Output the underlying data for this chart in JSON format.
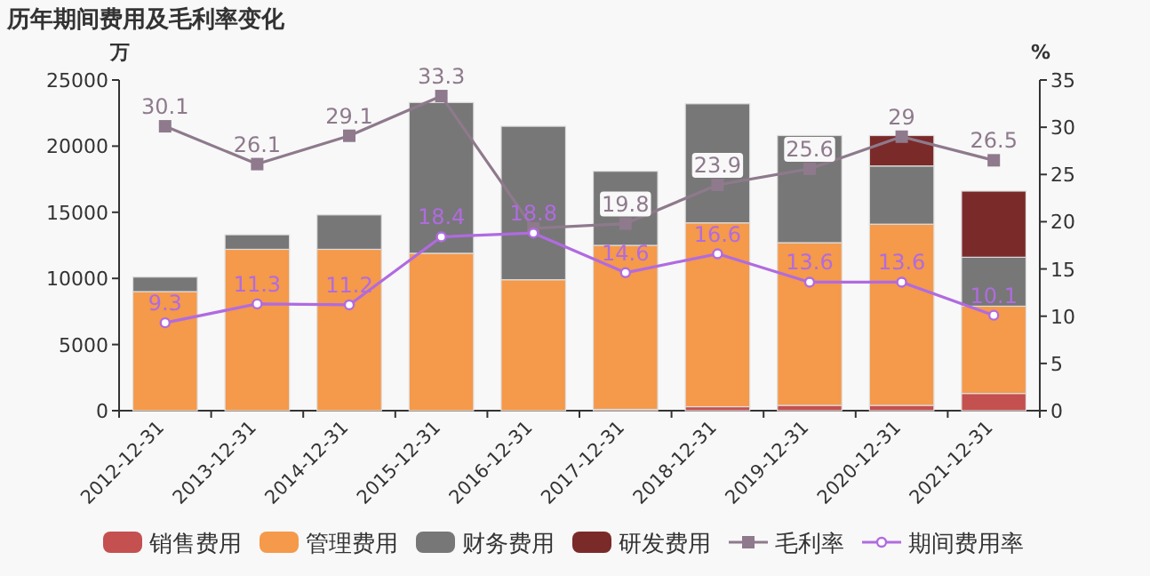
{
  "chart_data": {
    "type": "bar",
    "title": "历年期间费用及毛利率变化",
    "ylabel": "万",
    "y2label": "%",
    "categories": [
      "2012-12-31",
      "2013-12-31",
      "2014-12-31",
      "2015-12-31",
      "2016-12-31",
      "2017-12-31",
      "2018-12-31",
      "2019-12-31",
      "2020-12-31",
      "2021-12-31"
    ],
    "stacked": true,
    "ylim": [
      0,
      25000
    ],
    "yticks": [
      0,
      5000,
      10000,
      15000,
      20000,
      25000
    ],
    "y2lim": [
      0,
      35
    ],
    "y2ticks": [
      0,
      5,
      10,
      15,
      20,
      25,
      30,
      35
    ],
    "legend": "bottom",
    "series": [
      {
        "name": "销售费用",
        "color": "#c4504f",
        "values": [
          0,
          0,
          0,
          0,
          0,
          100,
          300,
          400,
          400,
          1300
        ]
      },
      {
        "name": "管理费用",
        "color": "#f5994a",
        "values": [
          9000,
          12200,
          12200,
          11900,
          9900,
          12400,
          13900,
          12300,
          13700,
          6600
        ]
      },
      {
        "name": "财务费用",
        "color": "#777777",
        "values": [
          1100,
          1100,
          2600,
          11400,
          11600,
          5600,
          9000,
          8100,
          4400,
          3700
        ]
      },
      {
        "name": "研发费用",
        "color": "#7b2a2a",
        "values": [
          0,
          0,
          0,
          0,
          0,
          0,
          0,
          0,
          2300,
          5000
        ]
      },
      {
        "name": "毛利率",
        "type": "line",
        "axis": "y2",
        "marker": "square",
        "color": "#8e7a8c",
        "values": [
          30.1,
          26.1,
          29.1,
          33.3,
          19.3,
          19.8,
          23.9,
          25.6,
          29,
          26.5
        ],
        "value_labels": [
          "30.1",
          "26.1",
          "29.1",
          "33.3",
          null,
          "19.8",
          "23.9",
          "25.6",
          "29",
          "26.5"
        ]
      },
      {
        "name": "期间费用率",
        "type": "line",
        "axis": "y2",
        "marker": "circle",
        "color": "#b06be0",
        "values": [
          9.3,
          11.3,
          11.2,
          18.4,
          18.8,
          14.6,
          16.6,
          13.6,
          13.6,
          10.1
        ],
        "value_labels": [
          "9.3",
          "11.3",
          "11.2",
          "18.4",
          "18.8",
          "14.6",
          "16.6",
          "13.6",
          "13.6",
          "10.1"
        ]
      }
    ]
  }
}
